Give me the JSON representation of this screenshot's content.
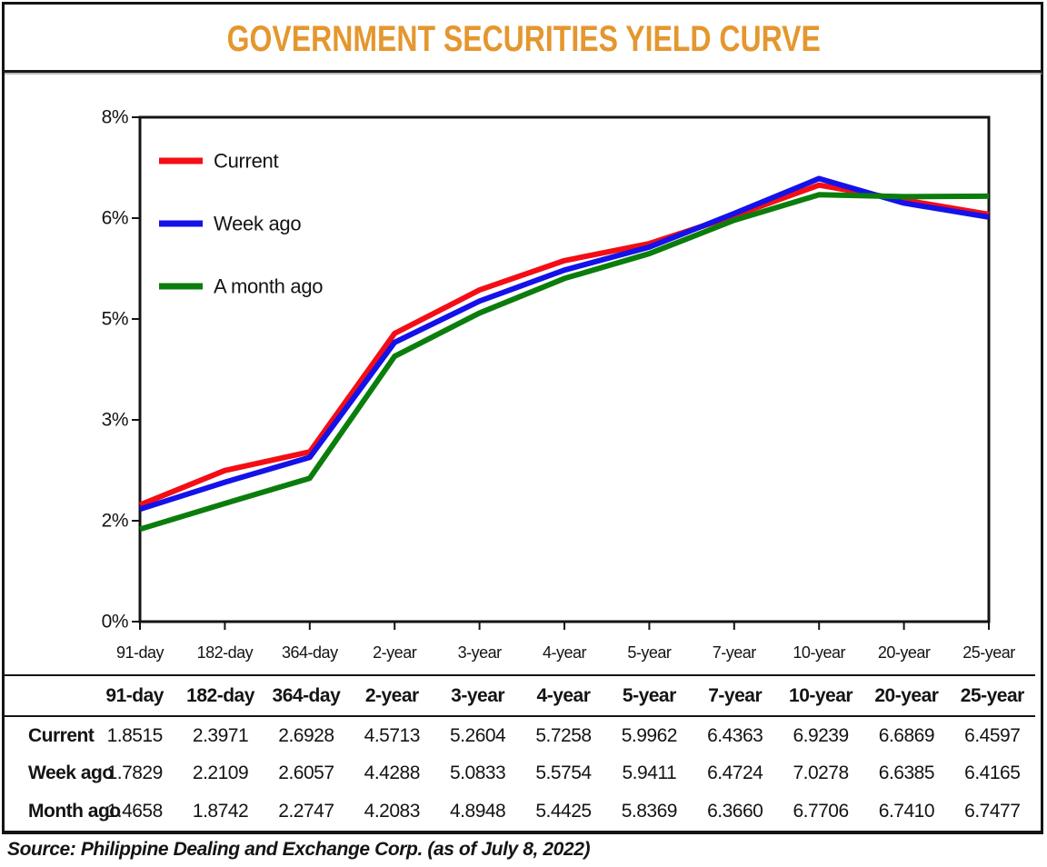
{
  "title": "GOVERNMENT SECURITIES YIELD CURVE",
  "source": "Source: Philippine Dealing and Exchange Corp. (as of July 8, 2022)",
  "colors": {
    "title": "#E4972E",
    "axis": "#141414",
    "current": "#F50D15",
    "week_ago": "#1412E8",
    "month_ago": "#0B7D0C"
  },
  "chart_data": {
    "type": "line",
    "title": "GOVERNMENT SECURITIES YIELD CURVE",
    "categories": [
      "91-day",
      "182-day",
      "364-day",
      "2-year",
      "3-year",
      "4-year",
      "5-year",
      "7-year",
      "10-year",
      "20-year",
      "25-year"
    ],
    "series": [
      {
        "name": "Current",
        "color": "#F50D15",
        "values": [
          1.8515,
          2.3971,
          2.6928,
          4.5713,
          5.2604,
          5.7258,
          5.9962,
          6.4363,
          6.9239,
          6.6869,
          6.4597
        ]
      },
      {
        "name": "Week ago",
        "color": "#1412E8",
        "values": [
          1.7829,
          2.2109,
          2.6057,
          4.4288,
          5.0833,
          5.5754,
          5.9411,
          6.4724,
          7.0278,
          6.6385,
          6.4165
        ]
      },
      {
        "name": "A month ago",
        "color": "#0B7D0C",
        "values": [
          1.4658,
          1.8742,
          2.2747,
          4.2083,
          4.8948,
          5.4425,
          5.8369,
          6.366,
          6.7706,
          6.741,
          6.7477
        ]
      }
    ],
    "ylim": [
      0,
      8
    ],
    "y_tick_labels_top_to_bottom": [
      "8%",
      "6%",
      "5%",
      "3%",
      "2%",
      "0%"
    ],
    "grid": false,
    "legend_position": "top-left"
  },
  "table": {
    "columns": [
      "91-day",
      "182-day",
      "364-day",
      "2-year",
      "3-year",
      "4-year",
      "5-year",
      "7-year",
      "10-year",
      "20-year",
      "25-year"
    ],
    "rows": [
      {
        "label": "Current",
        "values": [
          "1.8515",
          "2.3971",
          "2.6928",
          "4.5713",
          "5.2604",
          "5.7258",
          "5.9962",
          "6.4363",
          "6.9239",
          "6.6869",
          "6.4597"
        ]
      },
      {
        "label": "Week ago",
        "values": [
          "1.7829",
          "2.2109",
          "2.6057",
          "4.4288",
          "5.0833",
          "5.5754",
          "5.9411",
          "6.4724",
          "7.0278",
          "6.6385",
          "6.4165"
        ]
      },
      {
        "label": "Month ago",
        "values": [
          "1.4658",
          "1.8742",
          "2.2747",
          "4.2083",
          "4.8948",
          "5.4425",
          "5.8369",
          "6.3660",
          "6.7706",
          "6.7410",
          "6.7477"
        ]
      }
    ]
  }
}
